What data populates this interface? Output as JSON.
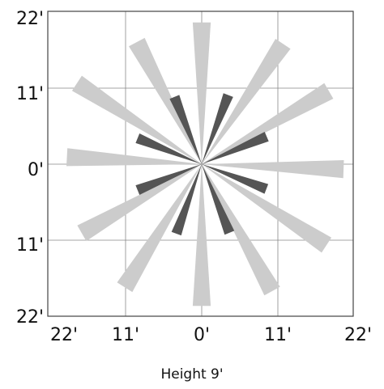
{
  "diagram": {
    "caption": "Height 9'",
    "x_ticks": [
      "22'",
      "11'",
      "0'",
      "11'",
      "22'"
    ],
    "y_ticks": [
      "22'",
      "11'",
      "0'",
      "11'",
      "22'"
    ],
    "range_ft": 22,
    "colors": {
      "outer_beam": "#cccccc",
      "inner_beam": "#555555",
      "grid": "#888888",
      "frame": "#444444",
      "text": "#111111"
    },
    "beams": [
      {
        "group": "outer",
        "angle_deg": 0,
        "length_ft": 20.5,
        "width_ft": 2.6
      },
      {
        "group": "outer",
        "angle_deg": 34,
        "length_ft": 21.0,
        "width_ft": 2.6
      },
      {
        "group": "outer",
        "angle_deg": 60,
        "length_ft": 21.2,
        "width_ft": 2.6
      },
      {
        "group": "outer",
        "angle_deg": 92,
        "length_ft": 20.5,
        "width_ft": 2.6
      },
      {
        "group": "outer",
        "angle_deg": 123,
        "length_ft": 21.5,
        "width_ft": 2.6
      },
      {
        "group": "outer",
        "angle_deg": 151,
        "length_ft": 21.0,
        "width_ft": 2.6
      },
      {
        "group": "outer",
        "angle_deg": 180,
        "length_ft": 20.5,
        "width_ft": 2.6
      },
      {
        "group": "outer",
        "angle_deg": 212,
        "length_ft": 21.0,
        "width_ft": 2.6
      },
      {
        "group": "outer",
        "angle_deg": 240,
        "length_ft": 20.0,
        "width_ft": 2.6
      },
      {
        "group": "outer",
        "angle_deg": 273,
        "length_ft": 19.5,
        "width_ft": 2.6
      },
      {
        "group": "outer",
        "angle_deg": 303,
        "length_ft": 21.5,
        "width_ft": 2.6
      },
      {
        "group": "outer",
        "angle_deg": 332,
        "length_ft": 20.0,
        "width_ft": 2.6
      },
      {
        "group": "inner",
        "angle_deg": 21,
        "length_ft": 10.7,
        "width_ft": 1.5
      },
      {
        "group": "inner",
        "angle_deg": 67,
        "length_ft": 10.2,
        "width_ft": 1.5
      },
      {
        "group": "inner",
        "angle_deg": 111,
        "length_ft": 10.0,
        "width_ft": 1.5
      },
      {
        "group": "inner",
        "angle_deg": 158,
        "length_ft": 10.7,
        "width_ft": 1.5
      },
      {
        "group": "inner",
        "angle_deg": 200,
        "length_ft": 10.7,
        "width_ft": 1.5
      },
      {
        "group": "inner",
        "angle_deg": 248,
        "length_ft": 10.0,
        "width_ft": 1.5
      },
      {
        "group": "inner",
        "angle_deg": 292,
        "length_ft": 10.0,
        "width_ft": 1.5
      },
      {
        "group": "inner",
        "angle_deg": 338,
        "length_ft": 10.5,
        "width_ft": 1.5
      }
    ]
  }
}
